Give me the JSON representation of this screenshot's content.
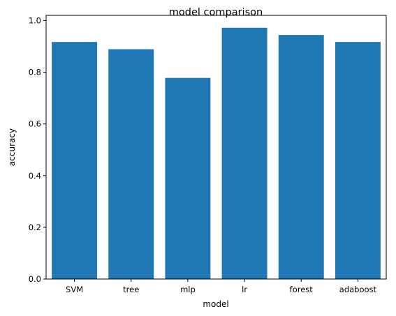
{
  "chart_data": {
    "type": "bar",
    "title": "model comparison",
    "xlabel": "model",
    "ylabel": "accuracy",
    "categories": [
      "SVM",
      "tree",
      "mlp",
      "lr",
      "forest",
      "adaboost"
    ],
    "values": [
      0.917,
      0.889,
      0.778,
      0.972,
      0.944,
      0.917
    ],
    "ylim": [
      0,
      1.02
    ],
    "yticks": [
      0.0,
      0.2,
      0.4,
      0.6,
      0.8,
      1.0
    ],
    "ytick_labels": [
      "0.0",
      "0.2",
      "0.4",
      "0.6",
      "0.8",
      "1.0"
    ],
    "bar_color": "#1f77b4",
    "grid": false,
    "legend": "none"
  }
}
